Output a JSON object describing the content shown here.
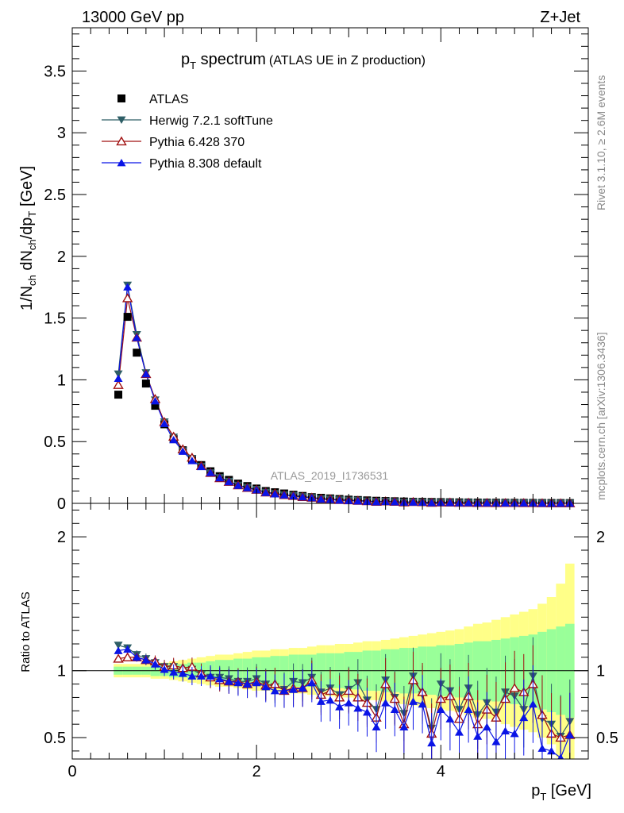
{
  "header": {
    "energy_label": "13000 GeV pp",
    "process_label": "Z+Jet",
    "title_main": "p",
    "title_sub": "T",
    "title_rest": " spectrum",
    "title_note": "(ATLAS UE in Z production)",
    "analysis_id": "ATLAS_2019_I1736531",
    "side_note_top": "Rivet 3.1.10, ≥ 2.6M events",
    "side_note_bottom": "mcplots.cern.ch [arXiv:1306.3436]"
  },
  "axes": {
    "ylabel_top": "1/N_ch dN_ch/dp_T [GeV]",
    "ylabel_ratio": "Ratio to ATLAS",
    "xlabel": "p_T [GeV]",
    "xlim": [
      0,
      5.6
    ],
    "ylim_top": [
      0,
      3.85
    ],
    "ylim_ratio": [
      0.34,
      2.25
    ],
    "xticks": [
      "0",
      "2",
      "4"
    ],
    "yticks_top": [
      "0",
      "0.5",
      "1",
      "1.5",
      "2",
      "2.5",
      "3",
      "3.5"
    ],
    "yticks_ratio": [
      "0.5",
      "1",
      "2"
    ]
  },
  "legend": {
    "items": [
      {
        "label": "ATLAS",
        "color": "#000000",
        "marker": "square"
      },
      {
        "label": "Herwig 7.2.1 softTune",
        "color": "#2e5e66",
        "marker": "triangle-down"
      },
      {
        "label": "Pythia 6.428 370",
        "color": "#a01010",
        "marker": "triangle-open"
      },
      {
        "label": "Pythia 8.308 default",
        "color": "#0a14e6",
        "marker": "triangle-up"
      }
    ]
  },
  "chart_data": {
    "type": "line",
    "title": "p_T spectrum (ATLAS UE in Z production)",
    "xlabel": "p_T [GeV]",
    "ylabel": "1/N_ch dN_ch/dp_T [GeV]",
    "ratio_ylabel": "Ratio to ATLAS",
    "x": [
      0.5,
      0.6,
      0.7,
      0.8,
      0.9,
      1.0,
      1.1,
      1.2,
      1.3,
      1.4,
      1.5,
      1.6,
      1.7,
      1.8,
      1.9,
      2.0,
      2.1,
      2.2,
      2.3,
      2.4,
      2.5,
      2.6,
      2.7,
      2.8,
      2.9,
      3.0,
      3.1,
      3.2,
      3.3,
      3.4,
      3.5,
      3.6,
      3.7,
      3.8,
      3.9,
      4.0,
      4.1,
      4.2,
      4.3,
      4.4,
      4.5,
      4.6,
      4.7,
      4.8,
      4.9,
      5.0,
      5.1,
      5.2,
      5.3,
      5.4
    ],
    "data_values": [
      0.88,
      1.51,
      1.22,
      0.97,
      0.79,
      0.64,
      0.52,
      0.43,
      0.36,
      0.31,
      0.26,
      0.22,
      0.19,
      0.16,
      0.14,
      0.12,
      0.1,
      0.09,
      0.08,
      0.07,
      0.06,
      0.05,
      0.045,
      0.04,
      0.035,
      0.03,
      0.027,
      0.024,
      0.021,
      0.019,
      0.017,
      0.015,
      0.013,
      0.012,
      0.011,
      0.01,
      0.009,
      0.008,
      0.0072,
      0.0065,
      0.0058,
      0.0052,
      0.0047,
      0.0042,
      0.0038,
      0.0034,
      0.0031,
      0.0028,
      0.0025,
      0.0023
    ],
    "ratio_series": [
      {
        "name": "Herwig 7.2.1 softTune",
        "color": "#2e5e66",
        "values": [
          1.19,
          1.17,
          1.12,
          1.09,
          1.06,
          1.03,
          1.03,
          0.99,
          1.01,
          0.97,
          0.95,
          0.95,
          0.94,
          0.92,
          0.92,
          0.94,
          0.9,
          0.88,
          0.86,
          0.92,
          0.91,
          0.95,
          0.84,
          0.87,
          0.82,
          0.86,
          0.91,
          0.78,
          0.71,
          0.93,
          0.8,
          0.68,
          0.96,
          0.82,
          0.57,
          0.9,
          0.85,
          0.71,
          0.87,
          0.67,
          0.76,
          0.69,
          0.84,
          0.81,
          0.71,
          0.96,
          0.64,
          0.6,
          0.51,
          0.62
        ]
      },
      {
        "name": "Pythia 6.428 370",
        "color": "#a01010",
        "values": [
          1.09,
          1.1,
          1.1,
          1.08,
          1.07,
          1.03,
          1.04,
          1.02,
          1.03,
          0.98,
          0.95,
          0.93,
          0.92,
          0.92,
          0.9,
          0.92,
          0.89,
          0.9,
          0.85,
          0.87,
          0.87,
          0.93,
          0.82,
          0.85,
          0.8,
          0.85,
          0.8,
          0.76,
          0.65,
          0.9,
          0.79,
          0.6,
          0.93,
          0.84,
          0.53,
          0.79,
          0.81,
          0.64,
          0.81,
          0.6,
          0.71,
          0.65,
          0.79,
          0.87,
          0.84,
          0.9,
          0.67,
          0.53,
          0.5,
          0.52
        ]
      },
      {
        "name": "Pythia 8.308 default",
        "color": "#0a14e6",
        "values": [
          1.15,
          1.16,
          1.1,
          1.08,
          1.05,
          1.01,
          0.99,
          0.98,
          0.96,
          0.96,
          0.96,
          0.94,
          0.92,
          0.91,
          0.9,
          0.91,
          0.88,
          0.85,
          0.85,
          0.86,
          0.87,
          0.91,
          0.77,
          0.78,
          0.73,
          0.76,
          0.72,
          0.69,
          0.58,
          0.76,
          0.71,
          0.58,
          0.77,
          0.75,
          0.46,
          0.71,
          0.64,
          0.54,
          0.71,
          0.51,
          0.58,
          0.47,
          0.55,
          0.53,
          0.65,
          0.75,
          0.42,
          0.4,
          0.35,
          0.52
        ]
      }
    ],
    "band_inner": [
      0.03,
      0.03,
      0.03,
      0.03,
      0.04,
      0.04,
      0.05,
      0.05,
      0.06,
      0.06,
      0.07,
      0.08,
      0.08,
      0.09,
      0.09,
      0.1,
      0.1,
      0.11,
      0.11,
      0.12,
      0.12,
      0.12,
      0.13,
      0.13,
      0.13,
      0.14,
      0.14,
      0.15,
      0.15,
      0.16,
      0.16,
      0.17,
      0.17,
      0.18,
      0.18,
      0.19,
      0.19,
      0.2,
      0.21,
      0.22,
      0.22,
      0.23,
      0.24,
      0.25,
      0.26,
      0.27,
      0.29,
      0.31,
      0.33,
      0.35
    ],
    "band_outer": [
      0.05,
      0.05,
      0.05,
      0.05,
      0.06,
      0.06,
      0.07,
      0.08,
      0.09,
      0.1,
      0.11,
      0.12,
      0.12,
      0.13,
      0.14,
      0.15,
      0.15,
      0.16,
      0.16,
      0.17,
      0.17,
      0.18,
      0.19,
      0.19,
      0.2,
      0.2,
      0.21,
      0.22,
      0.22,
      0.23,
      0.24,
      0.25,
      0.26,
      0.27,
      0.28,
      0.29,
      0.3,
      0.31,
      0.33,
      0.35,
      0.36,
      0.38,
      0.4,
      0.42,
      0.44,
      0.46,
      0.5,
      0.55,
      0.65,
      0.8
    ],
    "ylim": [
      0,
      3.85
    ],
    "ratio_ylim": [
      0.34,
      2.25
    ]
  }
}
